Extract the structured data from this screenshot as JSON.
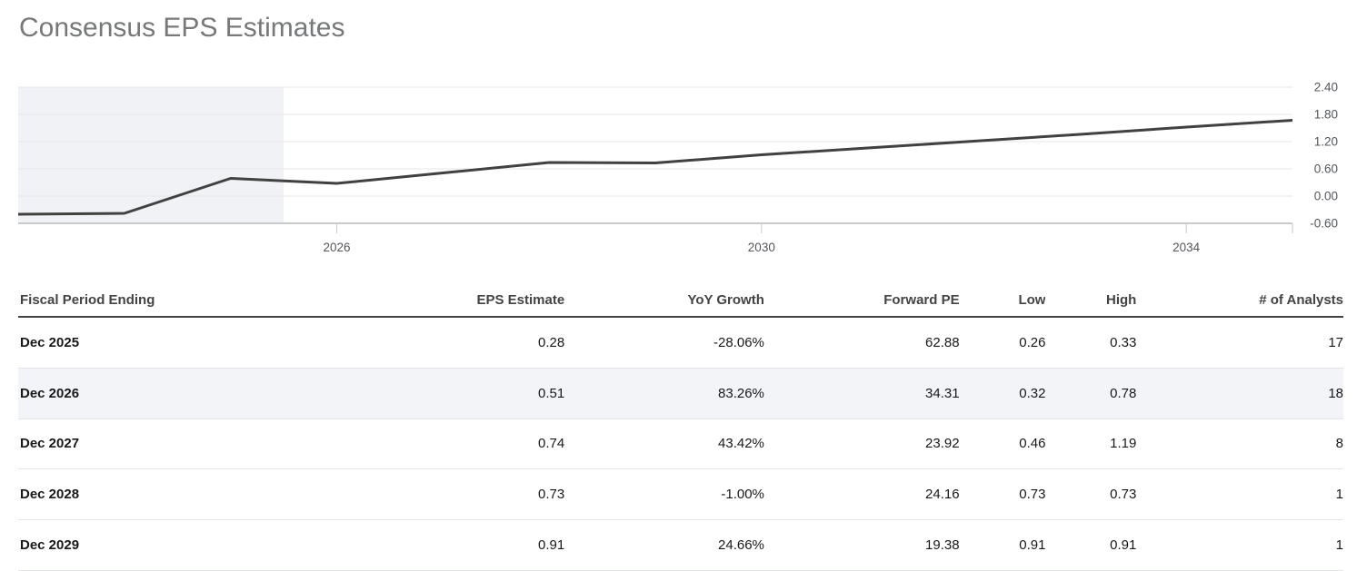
{
  "title": "Consensus EPS Estimates",
  "colors": {
    "title_text": "#76787a",
    "line": "#414141",
    "past_region": "#f1f2f6",
    "gridline": "#e6e7e9",
    "axis_line": "#c9cacc",
    "axis_label": "#53565a",
    "header_text": "#434343",
    "header_border": "#434343",
    "row_separator": "#e4e5e8",
    "highlight_row_bg": "#f3f4f8"
  },
  "chart_data": {
    "type": "line",
    "title": "Consensus EPS Estimates",
    "grid": true,
    "legend_position": "none",
    "ylim": [
      -0.6,
      2.4
    ],
    "y_axis_side": "right",
    "series": [
      {
        "name": "Consensus EPS",
        "x": [
          "Dec 2022",
          "Dec 2023",
          "Dec 2024",
          "Dec 2025",
          "Dec 2026",
          "Dec 2027",
          "Dec 2028",
          "Dec 2029",
          "Dec 2030",
          "Dec 2031",
          "Dec 2032",
          "Dec 2033",
          "Dec 2034"
        ],
        "values": [
          -0.4,
          -0.38,
          0.39,
          0.28,
          0.51,
          0.74,
          0.73,
          0.91,
          1.06,
          1.21,
          1.36,
          1.52,
          1.67
        ]
      }
    ],
    "x_ticks": [
      {
        "label": "2026",
        "year": 2026
      },
      {
        "label": "2030",
        "year": 2030
      },
      {
        "label": "2034",
        "year": 2034
      }
    ],
    "y_ticks": [
      {
        "label": "2.40",
        "value": 2.4
      },
      {
        "label": "1.80",
        "value": 1.8
      },
      {
        "label": "1.20",
        "value": 1.2
      },
      {
        "label": "0.60",
        "value": 0.6
      },
      {
        "label": "0.00",
        "value": 0.0
      },
      {
        "label": "-0.60",
        "value": -0.6
      }
    ],
    "past_region": {
      "from_x_label": "Dec 2022",
      "to_year_fraction": 2025.5
    }
  },
  "table": {
    "columns": [
      {
        "key": "period",
        "label": "Fiscal Period Ending",
        "align": "left"
      },
      {
        "key": "eps",
        "label": "EPS Estimate",
        "align": "right"
      },
      {
        "key": "yoy",
        "label": "YoY Growth",
        "align": "right"
      },
      {
        "key": "fpe",
        "label": "Forward PE",
        "align": "right"
      },
      {
        "key": "low",
        "label": "Low",
        "align": "right"
      },
      {
        "key": "high",
        "label": "High",
        "align": "right"
      },
      {
        "key": "analysts",
        "label": "# of Analysts",
        "align": "right"
      }
    ],
    "rows": [
      {
        "period": "Dec 2025",
        "eps": "0.28",
        "yoy": "-28.06%",
        "fpe": "62.88",
        "low": "0.26",
        "high": "0.33",
        "analysts": "17",
        "highlighted": false
      },
      {
        "period": "Dec 2026",
        "eps": "0.51",
        "yoy": "83.26%",
        "fpe": "34.31",
        "low": "0.32",
        "high": "0.78",
        "analysts": "18",
        "highlighted": true
      },
      {
        "period": "Dec 2027",
        "eps": "0.74",
        "yoy": "43.42%",
        "fpe": "23.92",
        "low": "0.46",
        "high": "1.19",
        "analysts": "8",
        "highlighted": false
      },
      {
        "period": "Dec 2028",
        "eps": "0.73",
        "yoy": "-1.00%",
        "fpe": "24.16",
        "low": "0.73",
        "high": "0.73",
        "analysts": "1",
        "highlighted": false
      },
      {
        "period": "Dec 2029",
        "eps": "0.91",
        "yoy": "24.66%",
        "fpe": "19.38",
        "low": "0.91",
        "high": "0.91",
        "analysts": "1",
        "highlighted": false
      }
    ]
  }
}
